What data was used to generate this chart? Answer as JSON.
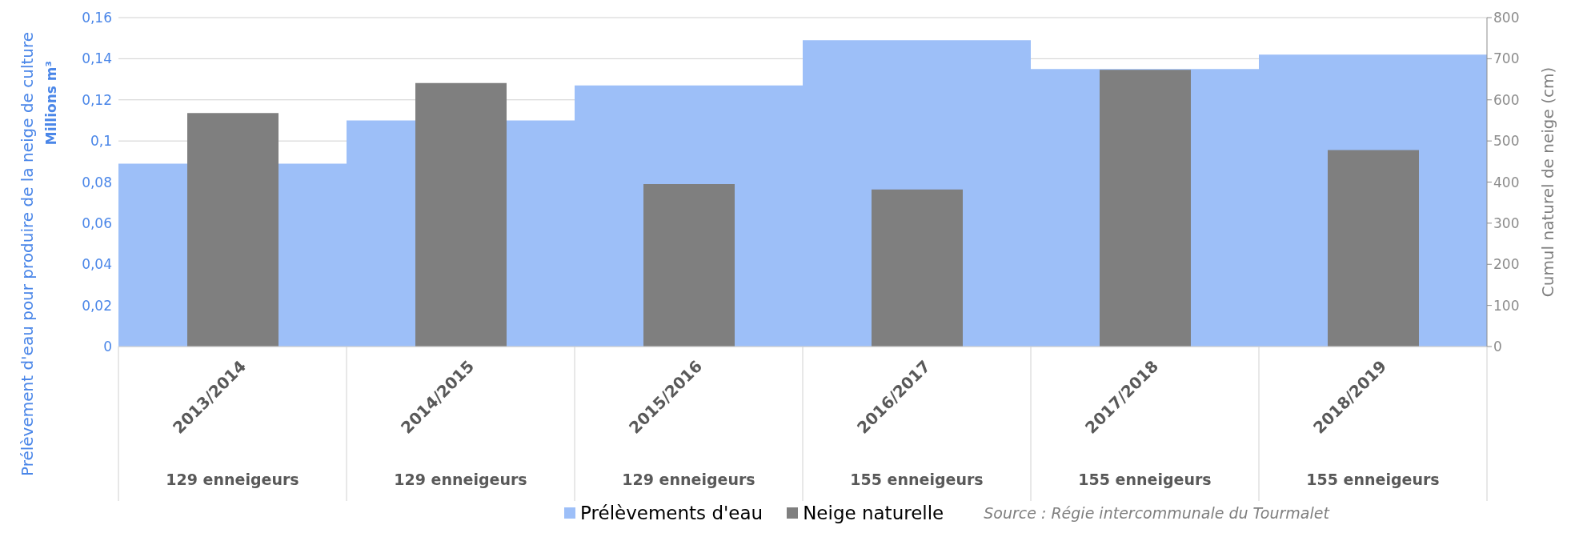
{
  "chart_data": {
    "type": "bar",
    "ylabel": "Prélèvement d'eau pour produire de la neige de culture\nMillions m³",
    "y2label": "Cumul naturel de neige (cm)",
    "categories": [
      "2013/2014",
      "2014/2015",
      "2015/2016",
      "2016/2017",
      "2017/2018",
      "2018/2019"
    ],
    "series": [
      {
        "name": "Prélèvements d'eau",
        "color": "#9dbff8",
        "values": [
          0.089,
          0.11,
          0.127,
          0.149,
          0.135,
          0.142
        ]
      },
      {
        "name": "Neige naturelle",
        "axis": "y2",
        "color": "#7f7f7f",
        "values": [
          568,
          641,
          395,
          382,
          673,
          478
        ]
      }
    ],
    "ylim": [
      0,
      0.16
    ],
    "yticks": [
      {
        "value": 0,
        "label": "0"
      },
      {
        "value": 0.02,
        "label": "0,02"
      },
      {
        "value": 0.04,
        "label": "0,04"
      },
      {
        "value": 0.06,
        "label": "0,06"
      },
      {
        "value": 0.08,
        "label": "0,08"
      },
      {
        "value": 0.1,
        "label": "0,1"
      },
      {
        "value": 0.12,
        "label": "0,12"
      },
      {
        "value": 0.14,
        "label": "0,14"
      },
      {
        "value": 0.16,
        "label": "0,16"
      }
    ],
    "y2lim": [
      0,
      800
    ],
    "y2ticks": [
      0,
      100,
      200,
      300,
      400,
      500,
      600,
      700,
      800
    ],
    "grid": "y",
    "legend": "bottom",
    "annotations": [
      "Source :  Régie intercommunale du Tourmalet",
      "129 enneigeurs",
      "129 enneigeurs",
      "129 enneigeurs",
      "155 enneigeurs",
      "155 enneigeurs",
      "155 enneigeurs"
    ]
  }
}
